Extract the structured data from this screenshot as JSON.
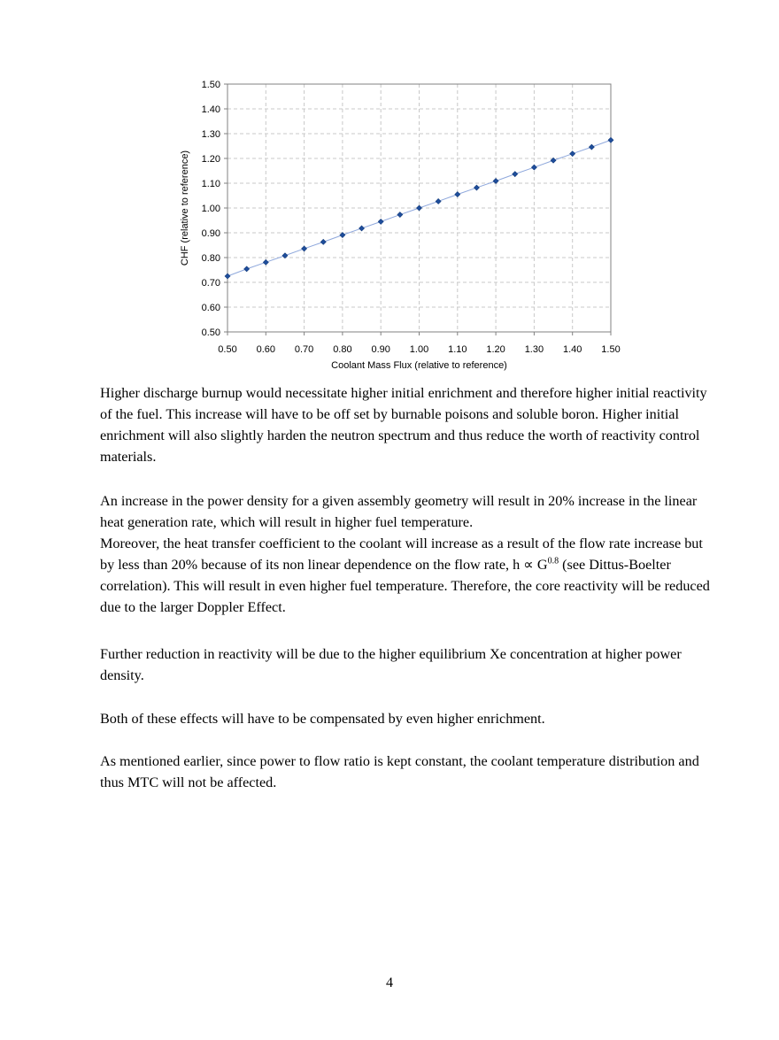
{
  "chart_data": {
    "type": "scatter",
    "xlabel": "Coolant Mass Flux (relative to reference)",
    "ylabel": "CHF (relative to reference)",
    "xlim": [
      0.5,
      1.5
    ],
    "ylim": [
      0.5,
      1.5
    ],
    "x_ticks": [
      "0.50",
      "0.60",
      "0.70",
      "0.80",
      "0.90",
      "1.00",
      "1.10",
      "1.20",
      "1.30",
      "1.40",
      "1.50"
    ],
    "y_ticks": [
      "0.50",
      "0.60",
      "0.70",
      "0.80",
      "0.90",
      "1.00",
      "1.10",
      "1.20",
      "1.30",
      "1.40",
      "1.50"
    ],
    "grid": true,
    "marker_color": "#1f4e9c",
    "line_color": "#8fa8dc",
    "series": [
      {
        "x": [
          0.5,
          0.55,
          0.6,
          0.65,
          0.7,
          0.75,
          0.8,
          0.85,
          0.9,
          0.95,
          1.0,
          1.05,
          1.1,
          1.15,
          1.2,
          1.25,
          1.3,
          1.35,
          1.4,
          1.45,
          1.5
        ],
        "y": [
          0.725,
          0.754,
          0.781,
          0.808,
          0.836,
          0.863,
          0.891,
          0.918,
          0.945,
          0.973,
          1.0,
          1.027,
          1.055,
          1.082,
          1.109,
          1.137,
          1.164,
          1.192,
          1.219,
          1.246,
          1.274
        ]
      }
    ]
  },
  "paragraphs": {
    "p1": "Higher discharge burnup would necessitate higher initial enrichment and therefore higher initial reactivity of the fuel. This increase will have to be off set by burnable poisons and soluble boron. Higher initial enrichment will also slightly harden the neutron spectrum and thus reduce the worth of reactivity control materials.",
    "p2a": "An increase in the power density for a given assembly geometry will result in 20% increase in the linear heat generation rate, which will result in higher fuel temperature.",
    "p2b_before": "Moreover, the heat transfer coefficient to the coolant will increase as a result of the flow rate increase but by less than 20% because of its non linear dependence on the flow rate, h ∝ G",
    "p2b_sup": "0.8",
    "p2b_after": " (see Dittus-Boelter correlation). This will result in even higher fuel temperature. Therefore, the core reactivity will be reduced due to the larger Doppler Effect.",
    "p3": "Further reduction in reactivity will be due to the higher equilibrium Xe concentration at higher power density.",
    "p4": "Both of these effects will have to be compensated by even higher enrichment.",
    "p5": "As mentioned earlier, since power to flow ratio is kept constant, the coolant temperature distribution and thus MTC will not be affected."
  },
  "page_number": "4"
}
